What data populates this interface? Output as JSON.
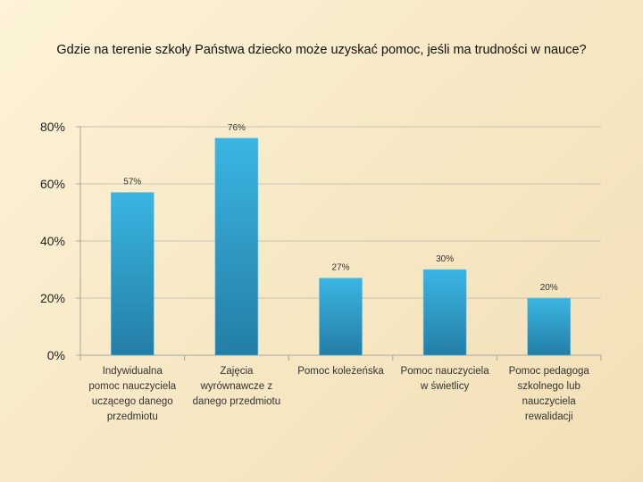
{
  "chart_data": {
    "type": "bar",
    "title": "Gdzie na terenie szkoły Państwa dziecko może uzyskać pomoc, jeśli ma trudności w nauce?",
    "xlabel": "",
    "ylabel": "",
    "ylim": [
      0,
      80
    ],
    "y_ticks": [
      "0%",
      "20%",
      "40%",
      "60%",
      "80%"
    ],
    "grid": true,
    "legend": "none",
    "bar_color": "#2a9fd0",
    "categories": [
      [
        "Indywidualna",
        "pomoc nauczyciela",
        "uczącego danego",
        "przedmiotu"
      ],
      [
        "Zajęcia",
        "wyrównawcze z",
        "danego przedmiotu"
      ],
      [
        "Pomoc koleżeńska"
      ],
      [
        "Pomoc nauczyciela",
        "w świetlicy"
      ],
      [
        "Pomoc pedagoga",
        "szkolnego lub",
        "nauczyciela",
        "rewalidacji"
      ]
    ],
    "values": [
      57,
      76,
      27,
      30,
      20
    ],
    "data_labels": [
      "57%",
      "76%",
      "27%",
      "30%",
      "20%"
    ]
  }
}
